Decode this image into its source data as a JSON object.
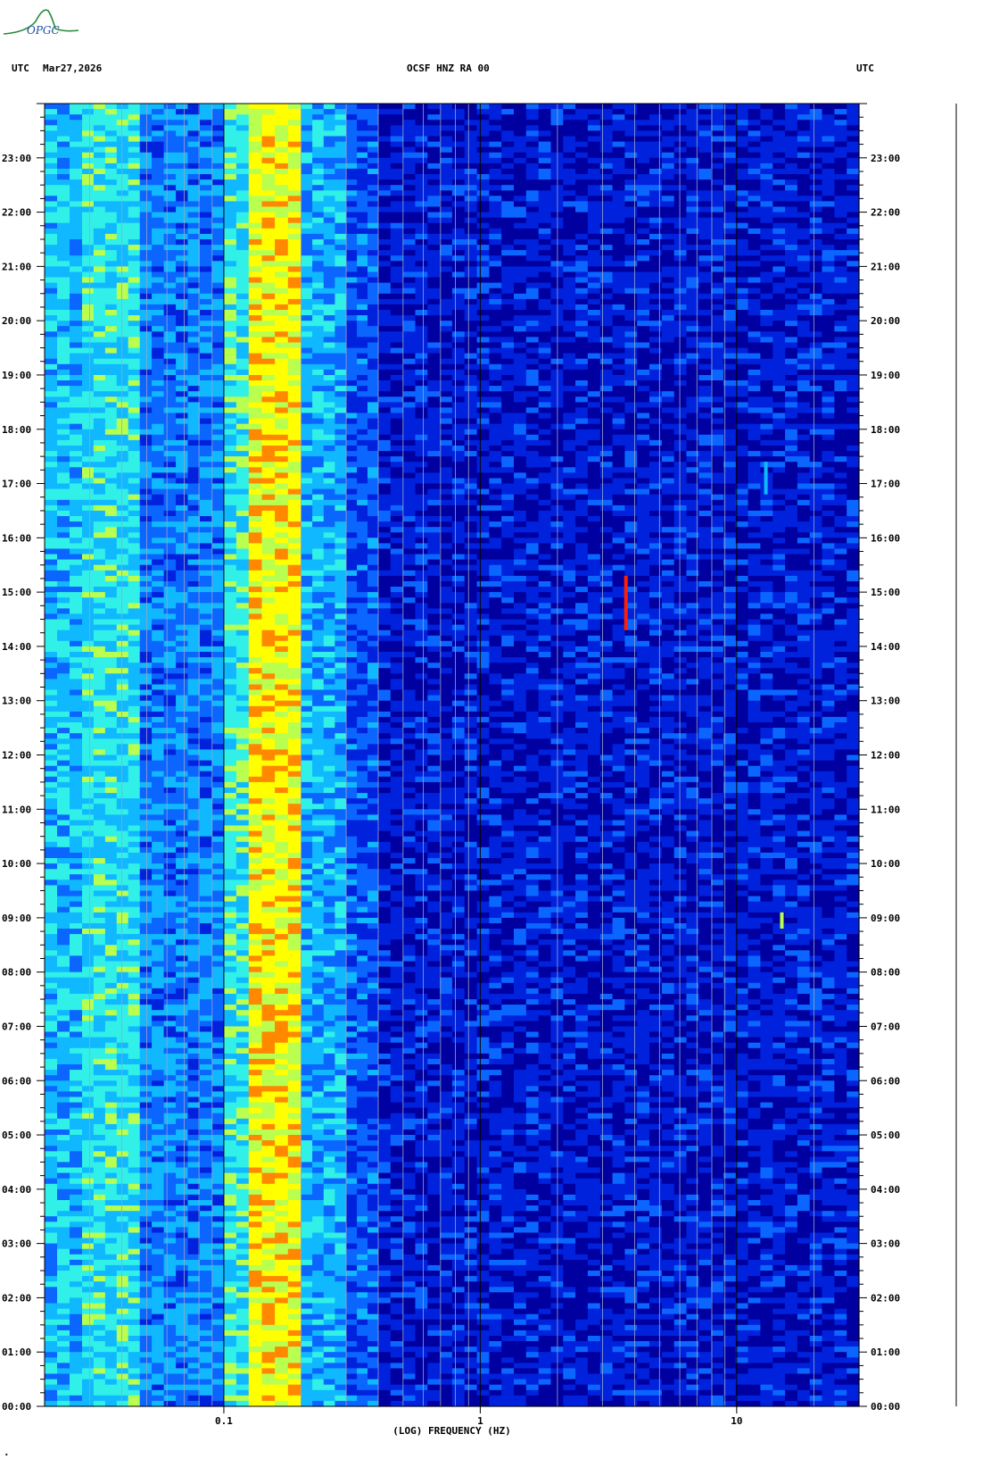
{
  "header": {
    "tz_left": "UTC",
    "date": "Mar27,2026",
    "station": "OCSF HNZ RA 00",
    "tz_right": "UTC"
  },
  "logo": {
    "text": "OPGC",
    "color": "#2a8a3a"
  },
  "footer_mark": ".",
  "chart_data": {
    "type": "heatmap",
    "title": "OCSF HNZ RA 00",
    "xlabel": "(LOG) FREQUENCY (HZ)",
    "x_scale": "log",
    "xlim": [
      0.02,
      30
    ],
    "x_ticks": [
      {
        "value": 0.1,
        "label": "0.1"
      },
      {
        "value": 1,
        "label": "1"
      },
      {
        "value": 10,
        "label": "10"
      }
    ],
    "y_ticks": [
      "00:00",
      "01:00",
      "02:00",
      "03:00",
      "04:00",
      "05:00",
      "06:00",
      "07:00",
      "08:00",
      "09:00",
      "10:00",
      "11:00",
      "12:00",
      "13:00",
      "14:00",
      "15:00",
      "16:00",
      "17:00",
      "18:00",
      "19:00",
      "20:00",
      "21:00",
      "22:00",
      "23:00"
    ],
    "ylim_hours": [
      0,
      24
    ],
    "colormap": [
      "#0000a0",
      "#0022dd",
      "#0a66ff",
      "#10b8ff",
      "#30f0e8",
      "#b8ff50",
      "#ffff00",
      "#ff8800",
      "#ff2000"
    ],
    "bands": [
      {
        "f_min": 0.02,
        "f_max": 0.028,
        "level": 3.0
      },
      {
        "f_min": 0.028,
        "f_max": 0.047,
        "level": 3.6
      },
      {
        "f_min": 0.047,
        "f_max": 0.1,
        "level": 2.2
      },
      {
        "f_min": 0.1,
        "f_max": 0.125,
        "level": 3.8
      },
      {
        "f_min": 0.125,
        "f_max": 0.2,
        "level": 5.8
      },
      {
        "f_min": 0.2,
        "f_max": 0.3,
        "level": 2.8
      },
      {
        "f_min": 0.3,
        "f_max": 0.4,
        "level": 1.6
      },
      {
        "f_min": 0.4,
        "f_max": 30,
        "level": 0.6
      }
    ],
    "events": [
      {
        "f": 3.7,
        "t_start": 14.3,
        "t_end": 15.3,
        "level": 8
      },
      {
        "f": 15.0,
        "t_start": 8.8,
        "t_end": 9.1,
        "level": 5
      },
      {
        "f": 13.0,
        "t_start": 16.8,
        "t_end": 17.4,
        "level": 3
      }
    ]
  }
}
